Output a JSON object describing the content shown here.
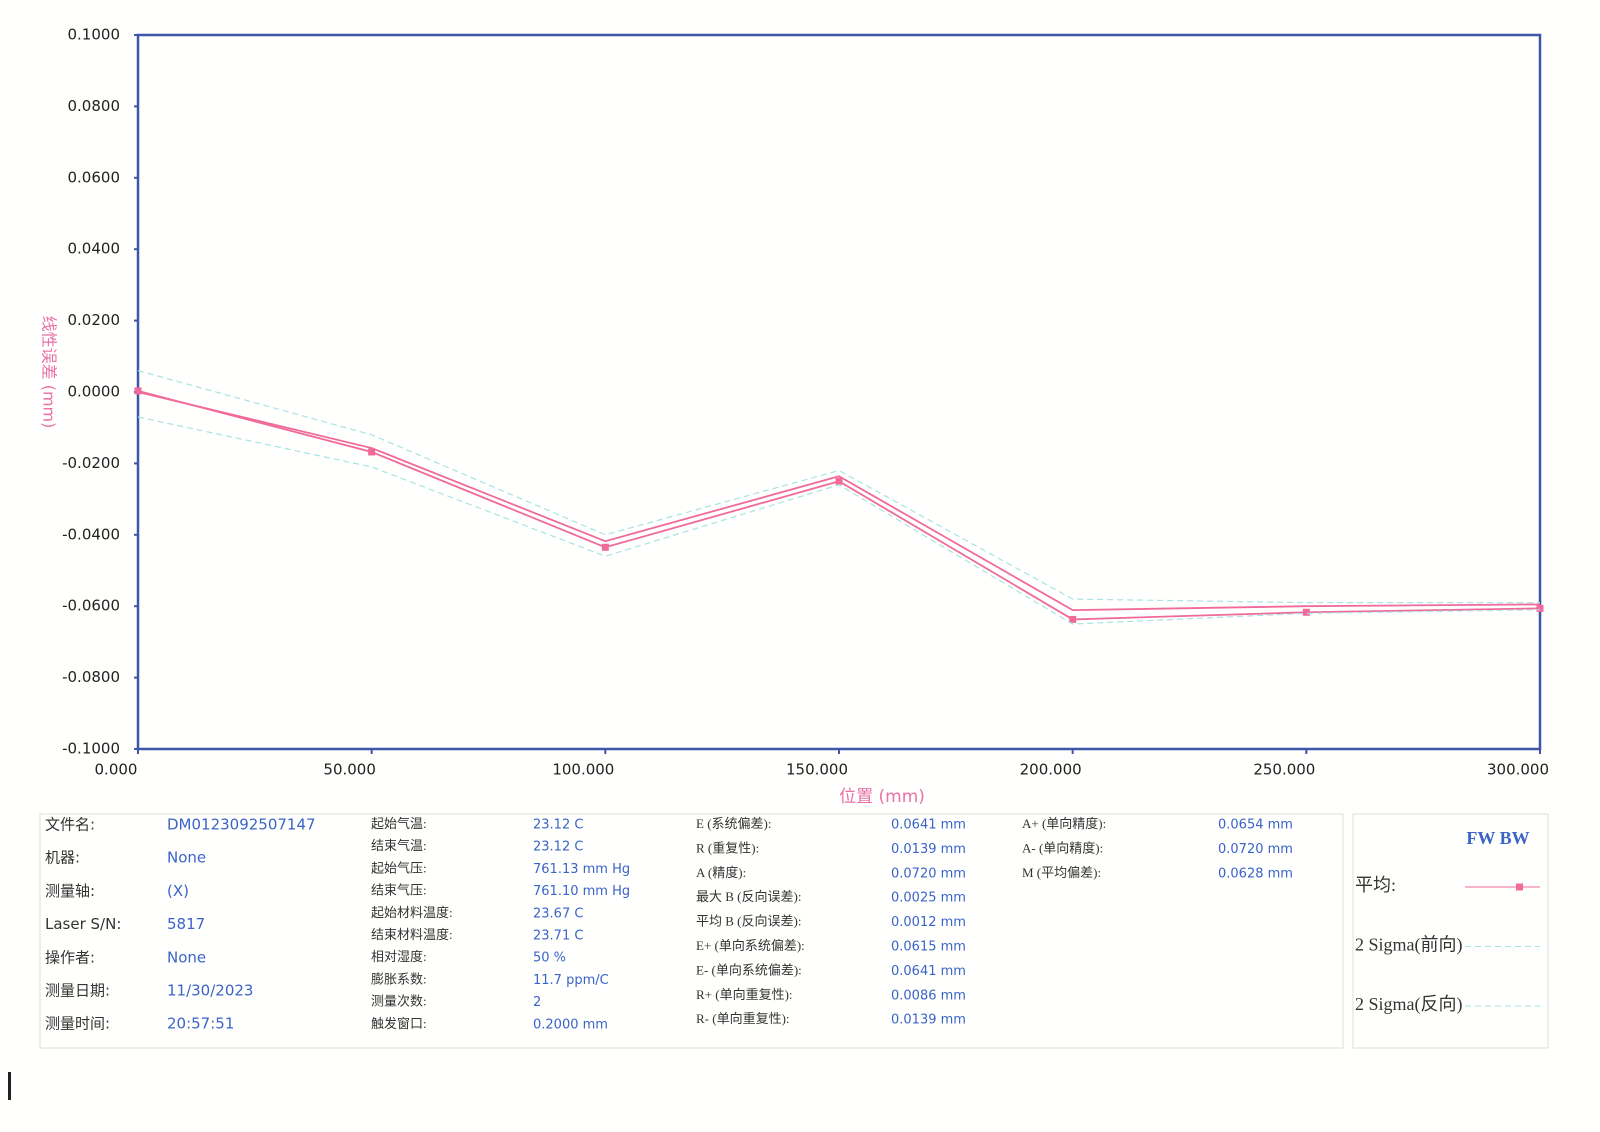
{
  "chart_data": {
    "type": "line",
    "x_label": "位置 (mm)",
    "y_label": "线性误差 (mm)",
    "x": [
      0,
      50,
      100,
      150,
      200,
      250,
      300
    ],
    "series": [
      {
        "color": "#f06a9a",
        "markers": true,
        "values": [
          0.0003,
          -0.0168,
          -0.0435,
          -0.025,
          -0.0637,
          -0.0617,
          -0.0606
        ]
      },
      {
        "color": "#f06a9a",
        "markers": false,
        "values": [
          0.0,
          -0.0157,
          -0.0418,
          -0.0236,
          -0.0611,
          -0.06,
          -0.0595
        ]
      },
      {
        "color": "#a8e3e8",
        "dash": true,
        "values": [
          0.006,
          -0.012,
          -0.04,
          -0.022,
          -0.058,
          -0.059,
          -0.059
        ]
      },
      {
        "color": "#a8e3e8",
        "dash": true,
        "values": [
          -0.007,
          -0.021,
          -0.046,
          -0.026,
          -0.065,
          -0.062,
          -0.061
        ]
      }
    ],
    "xlim": [
      0,
      300
    ],
    "xticks": [
      {
        "value": 0,
        "label": "0.000"
      },
      {
        "value": 50,
        "label": "50.000"
      },
      {
        "value": 100,
        "label": "100.000"
      },
      {
        "value": 150,
        "label": "150.000"
      },
      {
        "value": 200,
        "label": "200.000"
      },
      {
        "value": 250,
        "label": "250.000"
      },
      {
        "value": 300,
        "label": "300.000"
      }
    ],
    "ylim": [
      -0.1,
      0.1
    ],
    "yticks": [
      {
        "value": 0.1,
        "label": "0.1000"
      },
      {
        "value": 0.08,
        "label": "0.0800"
      },
      {
        "value": 0.06,
        "label": "0.0600"
      },
      {
        "value": 0.04,
        "label": "0.0400"
      },
      {
        "value": 0.02,
        "label": "0.0200"
      },
      {
        "value": 0,
        "label": "0.0000"
      },
      {
        "value": -0.02,
        "label": "-0.0200"
      },
      {
        "value": -0.04,
        "label": "-0.0400"
      },
      {
        "value": -0.06,
        "label": "-0.0600"
      },
      {
        "value": -0.08,
        "label": "-0.0800"
      },
      {
        "value": -0.1,
        "label": "-0.1000"
      }
    ],
    "legend": {
      "header": "FW BW",
      "entries": [
        "平均:",
        "2 Sigma(前向)",
        "2 Sigma(反向)"
      ]
    }
  },
  "info": {
    "columns": [
      [
        [
          "文件名:",
          "DM0123092507147"
        ],
        [
          "机器:",
          "None"
        ],
        [
          "测量轴:",
          "(X)"
        ],
        [
          "Laser S/N:",
          "5817"
        ],
        [
          "操作者:",
          "None"
        ],
        [
          "测量日期:",
          "11/30/2023"
        ],
        [
          "测量时间:",
          "20:57:51"
        ]
      ],
      [
        [
          "起始气温:",
          "23.12 C"
        ],
        [
          "结束气温:",
          "23.12 C"
        ],
        [
          "起始气压:",
          "761.13 mm Hg"
        ],
        [
          "结束气压:",
          "761.10 mm Hg"
        ],
        [
          "起始材料温度:",
          "23.67 C"
        ],
        [
          "结束材料温度:",
          "23.71 C"
        ],
        [
          "相对湿度:",
          "50 %"
        ],
        [
          "膨胀系数:",
          "11.7 ppm/C"
        ],
        [
          "测量次数:",
          "2"
        ],
        [
          "触发窗口:",
          "0.2000 mm"
        ]
      ],
      [
        [
          "E (系统偏差):",
          "0.0641 mm"
        ],
        [
          "R (重复性):",
          "0.0139 mm"
        ],
        [
          "A (精度):",
          "0.0720 mm"
        ],
        [
          "最大 B (反向误差):",
          "0.0025 mm"
        ],
        [
          "平均 B (反向误差):",
          "0.0012 mm"
        ],
        [
          "E+ (单向系统偏差):",
          "0.0615 mm"
        ],
        [
          "E- (单向系统偏差):",
          "0.0641 mm"
        ],
        [
          "R+ (单向重复性):",
          "0.0086 mm"
        ],
        [
          "R- (单向重复性):",
          "0.0139 mm"
        ]
      ],
      [
        [
          "A+ (单向精度):",
          "0.0654 mm"
        ],
        [
          "A- (单向精度):",
          "0.0720 mm"
        ],
        [
          "M (平均偏差):",
          "0.0628 mm"
        ]
      ]
    ]
  }
}
